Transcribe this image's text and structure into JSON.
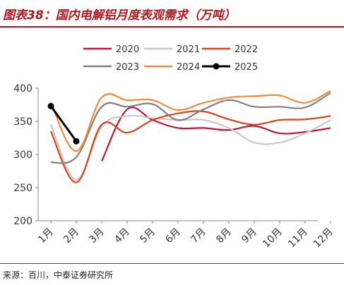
{
  "header": {
    "title": "图表38：国内电解铝月度表观需求（万吨）"
  },
  "footer": {
    "source": "来源：百川，中泰证券研究所"
  },
  "chart_data": {
    "type": "line",
    "title": "图表38：国内电解铝月度表观需求（万吨）",
    "xlabel": "",
    "ylabel": "",
    "categories": [
      "1月",
      "2月",
      "3月",
      "4月",
      "5月",
      "6月",
      "7月",
      "8月",
      "9月",
      "10月",
      "11月",
      "12月"
    ],
    "yticks": [
      200,
      250,
      300,
      350,
      400
    ],
    "ylim": [
      200,
      400
    ],
    "grid": false,
    "legend": "top",
    "series": [
      {
        "name": "2020",
        "color": "#c0143c",
        "values": [
          null,
          null,
          290,
          368,
          352,
          340,
          340,
          337,
          343,
          332,
          334,
          340
        ]
      },
      {
        "name": "2021",
        "color": "#c8c8c8",
        "values": [
          345,
          262,
          342,
          358,
          355,
          352,
          352,
          340,
          318,
          318,
          332,
          352
        ]
      },
      {
        "name": "2022",
        "color": "#d9451b",
        "values": [
          335,
          258,
          345,
          333,
          352,
          362,
          365,
          353,
          345,
          352,
          353,
          358
        ]
      },
      {
        "name": "2023",
        "color": "#808080",
        "values": [
          288,
          296,
          372,
          372,
          376,
          352,
          368,
          382,
          372,
          372,
          371,
          393
        ]
      },
      {
        "name": "2024",
        "color": "#f28a38",
        "values": [
          378,
          305,
          386,
          382,
          382,
          367,
          378,
          386,
          388,
          389,
          378,
          396
        ]
      },
      {
        "name": "2025",
        "color": "#000000",
        "values": [
          373,
          320,
          null,
          null,
          null,
          null,
          null,
          null,
          null,
          null,
          null,
          null
        ]
      }
    ]
  }
}
